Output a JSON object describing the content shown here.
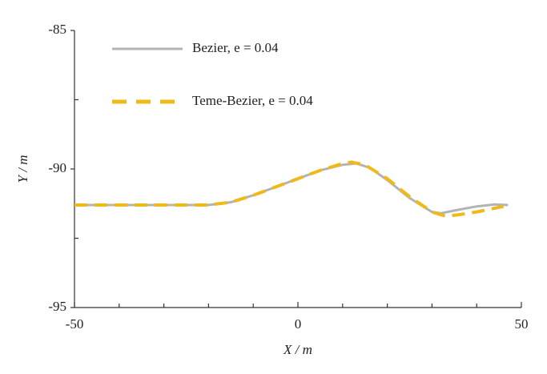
{
  "chart_data": {
    "type": "line",
    "xlabel": "X / m",
    "ylabel": "Y / m",
    "xlim": [
      -50,
      50
    ],
    "ylim": [
      -95,
      -85
    ],
    "xticks": [
      -50,
      0,
      50
    ],
    "yticks": [
      -95,
      -90,
      -85
    ],
    "xminorticks": [
      -40,
      -30,
      -20,
      -10,
      10,
      20,
      30,
      40
    ],
    "yminorticks": [
      -92.5,
      -87.5
    ],
    "series": [
      {
        "name": "Bezier, e = 0.04",
        "color": "#b3b3b3",
        "dash": false,
        "x": [
          -50,
          -20,
          -15,
          -10,
          -5,
          0,
          5,
          10,
          13,
          16,
          20,
          25,
          30,
          32,
          35,
          40,
          44,
          47
        ],
        "values": [
          -91.3,
          -91.3,
          -91.2,
          -90.95,
          -90.65,
          -90.35,
          -90.05,
          -89.85,
          -89.8,
          -89.95,
          -90.4,
          -91.05,
          -91.55,
          -91.6,
          -91.5,
          -91.35,
          -91.28,
          -91.3
        ]
      },
      {
        "name": "Teme-Bezier, e = 0.04",
        "color": "#f0b91a",
        "dash": true,
        "x": [
          -50,
          -20,
          -15,
          -10,
          -5,
          0,
          5,
          10,
          12,
          15,
          20,
          25,
          30,
          33,
          36,
          40,
          43,
          46
        ],
        "values": [
          -91.3,
          -91.3,
          -91.2,
          -90.95,
          -90.65,
          -90.35,
          -90.05,
          -89.8,
          -89.75,
          -89.85,
          -90.35,
          -91.0,
          -91.55,
          -91.7,
          -91.65,
          -91.55,
          -91.45,
          -91.35
        ]
      }
    ]
  }
}
